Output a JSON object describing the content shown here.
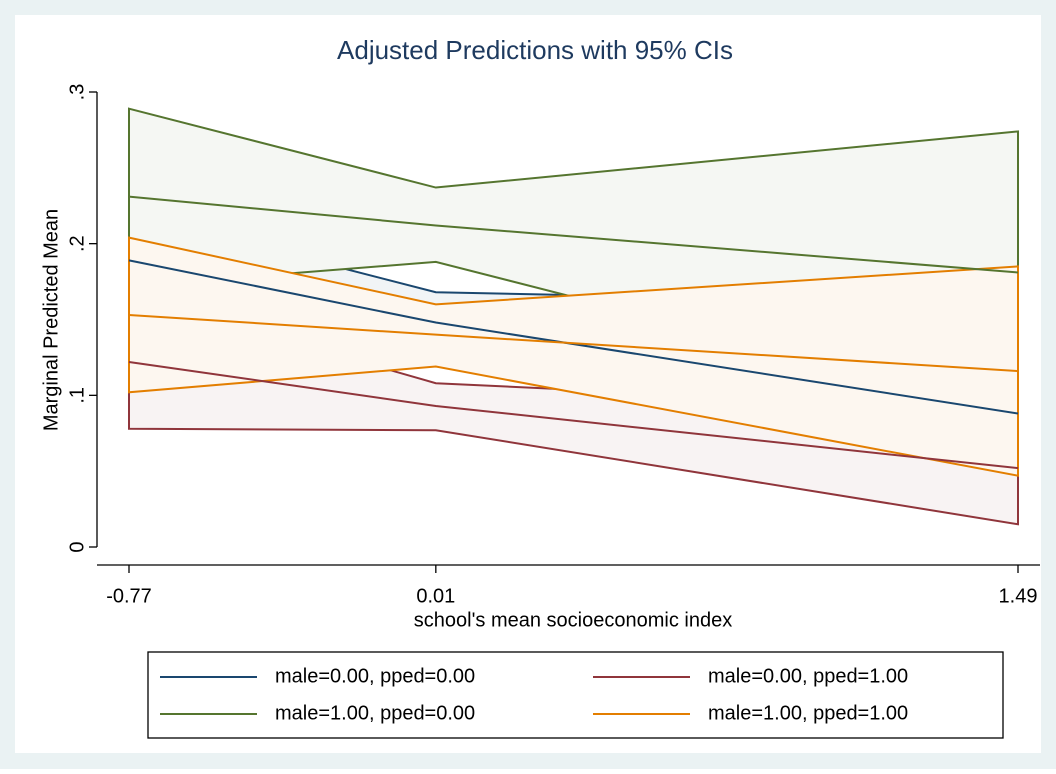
{
  "chart_data": {
    "type": "line",
    "title": "Adjusted Predictions with 95% CIs",
    "xlabel": "school's mean socioeconomic index",
    "ylabel": "Marginal Predicted Mean",
    "x": [
      -0.77,
      0.01,
      1.49
    ],
    "xlim": [
      -0.77,
      1.49
    ],
    "xticks": [
      -0.77,
      0.01,
      1.49
    ],
    "ylim": [
      0,
      0.3
    ],
    "yticks": [
      0,
      {
        "value": 0.1,
        "label": ".1"
      },
      {
        "value": 0.2,
        "label": ".2"
      },
      {
        "value": 0.3,
        "label": ".3"
      }
    ],
    "legend": "bottom",
    "series": [
      {
        "name": "male=0.00, pped=0.00",
        "color": "#1a476f",
        "values": [
          0.189,
          0.148,
          0.088
        ],
        "lower": [
          0.158,
          0.128,
          0.016
        ],
        "upper": [
          0.22,
          0.168,
          0.16
        ]
      },
      {
        "name": "male=0.00, pped=1.00",
        "color": "#90353b",
        "values": [
          0.122,
          0.093,
          0.052
        ],
        "lower": [
          0.078,
          0.077,
          0.015
        ],
        "upper": [
          0.166,
          0.108,
          0.09
        ]
      },
      {
        "name": "male=1.00, pped=0.00",
        "color": "#55752f",
        "values": [
          0.231,
          0.212,
          0.181
        ],
        "lower": [
          0.172,
          0.188,
          0.09
        ],
        "upper": [
          0.289,
          0.237,
          0.274
        ]
      },
      {
        "name": "male=1.00, pped=1.00",
        "color": "#e37e00",
        "values": [
          0.153,
          0.14,
          0.116
        ],
        "lower": [
          0.102,
          0.119,
          0.047
        ],
        "upper": [
          0.204,
          0.16,
          0.185
        ]
      }
    ]
  }
}
